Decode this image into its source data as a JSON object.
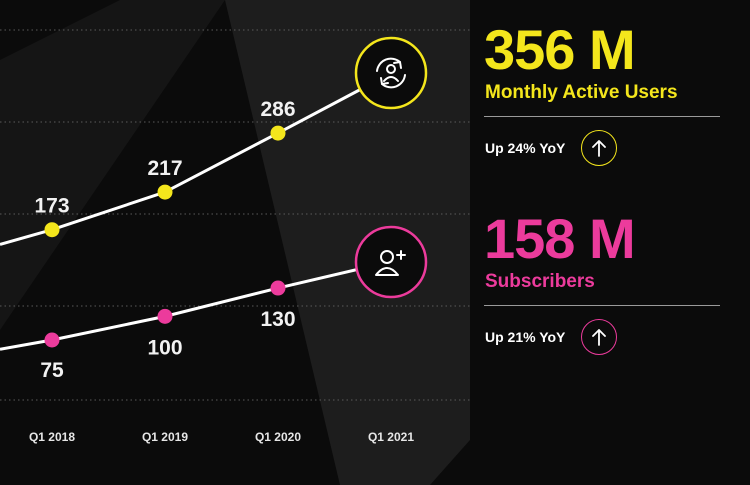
{
  "colors": {
    "mau": "#f4e61c",
    "subscribers": "#ec3b9c",
    "line": "#ffffff",
    "background": "#0b0b0b"
  },
  "chart_data": {
    "type": "line",
    "x": [
      "Q1 2018",
      "Q1 2019",
      "Q1 2020",
      "Q1 2021"
    ],
    "series": [
      {
        "name": "Monthly Active Users",
        "unit": "M",
        "values": [
          173,
          217,
          286,
          356
        ],
        "labels": [
          "173",
          "217",
          "286",
          ""
        ],
        "end_icon": "user-refresh-icon"
      },
      {
        "name": "Subscribers",
        "unit": "M",
        "values": [
          75,
          100,
          130,
          158
        ],
        "labels": [
          "75",
          "100",
          "130",
          ""
        ],
        "end_icon": "add-user-icon"
      }
    ],
    "grid": true,
    "legend": "right"
  },
  "mau": {
    "value": "356 M",
    "label": "Monthly Active Users",
    "change": "Up 24% YoY",
    "icon": "arrow-up-icon"
  },
  "subscribers": {
    "value": "158 M",
    "label": "Subscribers",
    "change": "Up 21% YoY",
    "icon": "arrow-up-icon"
  }
}
